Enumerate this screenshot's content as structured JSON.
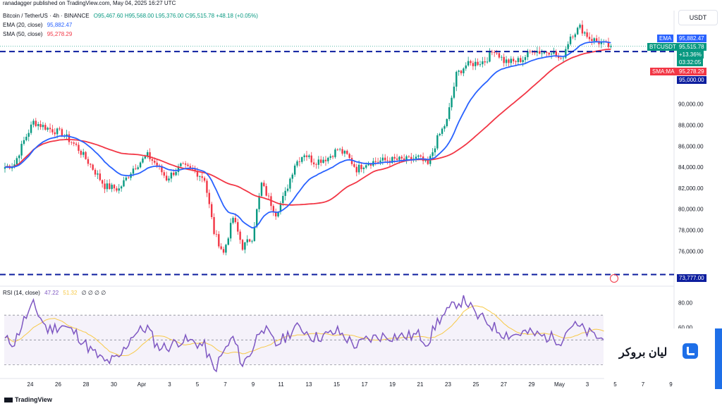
{
  "header": {
    "published": "ranadagger published on TradingView.com, May 04, 2025 16:27 UTC",
    "symbol": "Bitcoin / TetherUS · 4h · BINANCE",
    "ohlc": "O95,467.60 H95,568.00 L95,376.00 C95,515.78 +48.18 (+0.05%)",
    "ema_label": "EMA (20, close)",
    "ema_value": "95,882.47",
    "sma_label": "SMA (50, close)",
    "sma_value": "95,278.29",
    "currency": "USDT"
  },
  "rsi_header": {
    "label": "RSI (14, close)",
    "rsi_value": "47.22",
    "ma_value": "51.32",
    "placeholders": "∅ ∅ ∅ ∅"
  },
  "price_tags": {
    "ema": {
      "name": "EMA",
      "value": "95,882.47"
    },
    "symbol": {
      "name": "BTCUSDT",
      "value": "95,515.78",
      "change": "+13.36%",
      "timer": "03:32:05"
    },
    "sma": {
      "name": "SMA:MA",
      "value": "95,278.29"
    },
    "level_upper": "95,000.00",
    "level_lower": "73,777.00"
  },
  "brand": {
    "text": "لیان بروکر"
  },
  "footer": {
    "logo": "TradingView"
  },
  "colors": {
    "up": "#089981",
    "down": "#f23645",
    "ema": "#2962ff",
    "sma": "#f23645",
    "rsi": "#7e57c2",
    "rsi_ma": "#f7c948",
    "level": "#0d1e9e",
    "band": "#7e57c2"
  },
  "icons": {
    "alert": "alert-icon",
    "brand": "brand-logo-icon",
    "tradingview": "tradingview-logo-icon"
  },
  "chart_data": {
    "type": "candlestick",
    "interval": "4h",
    "y_ticks": [
      76000,
      78000,
      80000,
      82000,
      84000,
      86000,
      88000,
      90000
    ],
    "y_tick_labels": [
      "76,000.00",
      "78,000.00",
      "80,000.00",
      "82,000.00",
      "84,000.00",
      "86,000.00",
      "88,000.00",
      "90,000.00"
    ],
    "ylim": [
      72600,
      98900
    ],
    "x_tick_labels": [
      "24",
      "26",
      "28",
      "30",
      "Apr",
      "3",
      "5",
      "7",
      "9",
      "11",
      "13",
      "15",
      "17",
      "19",
      "21",
      "23",
      "25",
      "27",
      "29",
      "May",
      "3",
      "5",
      "7",
      "9"
    ],
    "horizontal_levels": [
      95000,
      73777
    ],
    "close_anchors": [
      [
        0,
        84000
      ],
      [
        4,
        84300
      ],
      [
        8,
        86500
      ],
      [
        12,
        88300
      ],
      [
        18,
        87700
      ],
      [
        24,
        87200
      ],
      [
        30,
        86000
      ],
      [
        36,
        84200
      ],
      [
        42,
        82200
      ],
      [
        48,
        81900
      ],
      [
        54,
        83900
      ],
      [
        60,
        85100
      ],
      [
        64,
        84200
      ],
      [
        68,
        82900
      ],
      [
        74,
        84100
      ],
      [
        80,
        83600
      ],
      [
        84,
        82900
      ],
      [
        88,
        77800
      ],
      [
        92,
        75800
      ],
      [
        96,
        79200
      ],
      [
        100,
        76400
      ],
      [
        104,
        77300
      ],
      [
        108,
        82400
      ],
      [
        114,
        79600
      ],
      [
        118,
        81500
      ],
      [
        122,
        84300
      ],
      [
        126,
        85300
      ],
      [
        130,
        84500
      ],
      [
        136,
        84900
      ],
      [
        140,
        85700
      ],
      [
        144,
        85100
      ],
      [
        148,
        83800
      ],
      [
        152,
        84400
      ],
      [
        158,
        84600
      ],
      [
        164,
        84700
      ],
      [
        170,
        84700
      ],
      [
        174,
        84900
      ],
      [
        178,
        84200
      ],
      [
        182,
        86700
      ],
      [
        186,
        88400
      ],
      [
        190,
        92800
      ],
      [
        194,
        93700
      ],
      [
        198,
        93900
      ],
      [
        202,
        94100
      ],
      [
        206,
        95200
      ],
      [
        210,
        94100
      ],
      [
        214,
        94000
      ],
      [
        218,
        94300
      ],
      [
        222,
        95200
      ],
      [
        226,
        94900
      ],
      [
        230,
        95100
      ],
      [
        234,
        94100
      ],
      [
        238,
        96500
      ],
      [
        242,
        97300
      ],
      [
        246,
        96300
      ],
      [
        250,
        95900
      ],
      [
        254,
        95516
      ]
    ],
    "series": [
      {
        "name": "BTCUSDT",
        "kind": "candles"
      },
      {
        "name": "EMA (20, close)",
        "kind": "line"
      },
      {
        "name": "SMA (50, close)",
        "kind": "line"
      }
    ],
    "rsi": {
      "ylim": [
        20,
        90
      ],
      "y_tick_labels": [
        {
          "v": 80,
          "t": "80.00"
        },
        {
          "v": 60,
          "t": "60.00"
        }
      ],
      "bands": [
        70,
        30
      ],
      "value_anchors": [
        [
          0,
          50
        ],
        [
          4,
          48
        ],
        [
          8,
          66
        ],
        [
          12,
          78
        ],
        [
          18,
          58
        ],
        [
          24,
          62
        ],
        [
          30,
          55
        ],
        [
          36,
          42
        ],
        [
          42,
          32
        ],
        [
          48,
          35
        ],
        [
          54,
          55
        ],
        [
          60,
          60
        ],
        [
          64,
          45
        ],
        [
          68,
          44
        ],
        [
          74,
          50
        ],
        [
          80,
          48
        ],
        [
          84,
          45
        ],
        [
          88,
          25
        ],
        [
          92,
          40
        ],
        [
          96,
          52
        ],
        [
          100,
          30
        ],
        [
          104,
          42
        ],
        [
          108,
          62
        ],
        [
          114,
          46
        ],
        [
          118,
          52
        ],
        [
          122,
          60
        ],
        [
          126,
          58
        ],
        [
          130,
          52
        ],
        [
          136,
          54
        ],
        [
          140,
          57
        ],
        [
          144,
          51
        ],
        [
          148,
          45
        ],
        [
          152,
          50
        ],
        [
          158,
          53
        ],
        [
          164,
          53
        ],
        [
          170,
          53
        ],
        [
          174,
          54
        ],
        [
          178,
          48
        ],
        [
          182,
          65
        ],
        [
          186,
          72
        ],
        [
          190,
          80
        ],
        [
          194,
          82
        ],
        [
          198,
          70
        ],
        [
          202,
          66
        ],
        [
          206,
          60
        ],
        [
          210,
          55
        ],
        [
          214,
          54
        ],
        [
          218,
          56
        ],
        [
          222,
          55
        ],
        [
          226,
          53
        ],
        [
          230,
          52
        ],
        [
          234,
          50
        ],
        [
          238,
          62
        ],
        [
          242,
          60
        ],
        [
          246,
          55
        ],
        [
          250,
          52
        ],
        [
          254,
          47
        ]
      ]
    }
  }
}
